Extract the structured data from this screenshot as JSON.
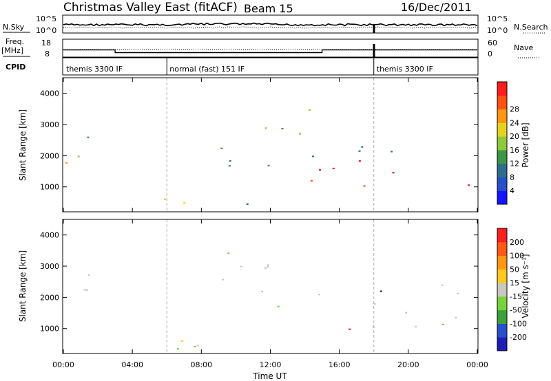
{
  "header": {
    "station": "Christmas Valley East (fitACF)",
    "beam": "Beam 15",
    "date": "16/Dec/2011"
  },
  "strip": {
    "nsky_label": "N.Sky",
    "nsky_ticks": [
      "10^5",
      "10^0"
    ],
    "nsearch_label": "N.Search",
    "nsearch_ticks": [
      "10^5",
      "10^0"
    ],
    "freq_label": "Freq.",
    "freq_unit": "[MHz]",
    "freq_ticks": [
      "18",
      "8"
    ],
    "nave_label": "Nave",
    "nave_ticks": [
      "60",
      "0"
    ],
    "cpid_label": "CPID",
    "cpid_segments": [
      {
        "start": 0,
        "end": 6,
        "label": "themis 3300 IF"
      },
      {
        "start": 6,
        "end": 18,
        "label": "normal (fast) 151 IF"
      },
      {
        "start": 18,
        "end": 24,
        "label": "themis 3300 IF"
      }
    ],
    "freq_steps": [
      {
        "start": 0,
        "end": 3,
        "mhz": 12
      },
      {
        "start": 3,
        "end": 15,
        "mhz": 10.5
      },
      {
        "start": 15,
        "end": 24,
        "mhz": 12
      }
    ]
  },
  "chart_data": [
    {
      "type": "heatmap",
      "panel": "power",
      "xlabel": "Time UT",
      "ylabel": "Slant Range [km]",
      "xlim": [
        0,
        24
      ],
      "ylim": [
        200,
        4500
      ],
      "yticks": [
        "1000",
        "2000",
        "3000",
        "4000"
      ],
      "colorbar_label": "Power [dB]",
      "colorbar_ticks": [
        "4",
        "8",
        "12",
        "16",
        "20",
        "24",
        "28"
      ],
      "colorbar_colors": [
        "#1414ff",
        "#2850c8",
        "#2e6e8c",
        "#3c9646",
        "#90c83c",
        "#e6d21e",
        "#ff9614",
        "#ff5014",
        "#ff1e1e"
      ],
      "regions": [
        {
          "t0": 0.0,
          "t1": 0.5,
          "r0": 1500,
          "r1": 2700,
          "level": 7
        },
        {
          "t0": 0.4,
          "t1": 1.6,
          "r0": 1200,
          "r1": 3500,
          "level": 3
        },
        {
          "t0": 5.7,
          "t1": 8.3,
          "r0": 300,
          "r1": 1000,
          "level": 6
        },
        {
          "t0": 8.0,
          "t1": 13.0,
          "r0": 300,
          "r1": 600,
          "level": 2
        },
        {
          "t0": 9.0,
          "t1": 15.2,
          "r0": 1700,
          "r1": 3500,
          "level": 3
        },
        {
          "t0": 14.2,
          "t1": 24.0,
          "r0": 1000,
          "r1": 1900,
          "level": 8
        },
        {
          "t0": 16.5,
          "t1": 24.0,
          "r0": 2100,
          "r1": 2600,
          "level": 3
        }
      ]
    },
    {
      "type": "heatmap",
      "panel": "velocity",
      "xlabel": "Time UT",
      "ylabel": "Slant Range [km]",
      "xlim": [
        0,
        24
      ],
      "ylim": [
        200,
        4500
      ],
      "yticks": [
        "1000",
        "2000",
        "3000",
        "4000"
      ],
      "xticks": [
        "00:00",
        "04:00",
        "08:00",
        "12:00",
        "16:00",
        "20:00",
        "00:00"
      ],
      "colorbar_label": "Velocity [m s⁻¹]",
      "colorbar_ticks": [
        "200",
        "100",
        "50",
        "15",
        "-15",
        "-50",
        "-100",
        "-200"
      ],
      "colorbar_colors": [
        "#1e1eb4",
        "#2850c8",
        "#3ca03c",
        "#78d23c",
        "#c8c8c0",
        "#ffc81e",
        "#ff9614",
        "#ff5a14",
        "#ff1e1e"
      ],
      "regions": [
        {
          "t0": 0.0,
          "t1": 1.6,
          "r0": 1200,
          "r1": 3500,
          "level": "gray"
        },
        {
          "t0": 5.7,
          "t1": 8.3,
          "r0": 300,
          "r1": 1000,
          "level": "gray"
        },
        {
          "t0": 5.7,
          "t1": 14.0,
          "r0": 250,
          "r1": 500,
          "level": "green"
        },
        {
          "t0": 9.0,
          "t1": 15.2,
          "r0": 1700,
          "r1": 3500,
          "level": "gray"
        },
        {
          "t0": 14.2,
          "t1": 24.0,
          "r0": 1000,
          "r1": 1900,
          "level": "gray"
        },
        {
          "t0": 16.5,
          "t1": 24.0,
          "r0": 2100,
          "r1": 2600,
          "level": "gray"
        }
      ]
    }
  ]
}
